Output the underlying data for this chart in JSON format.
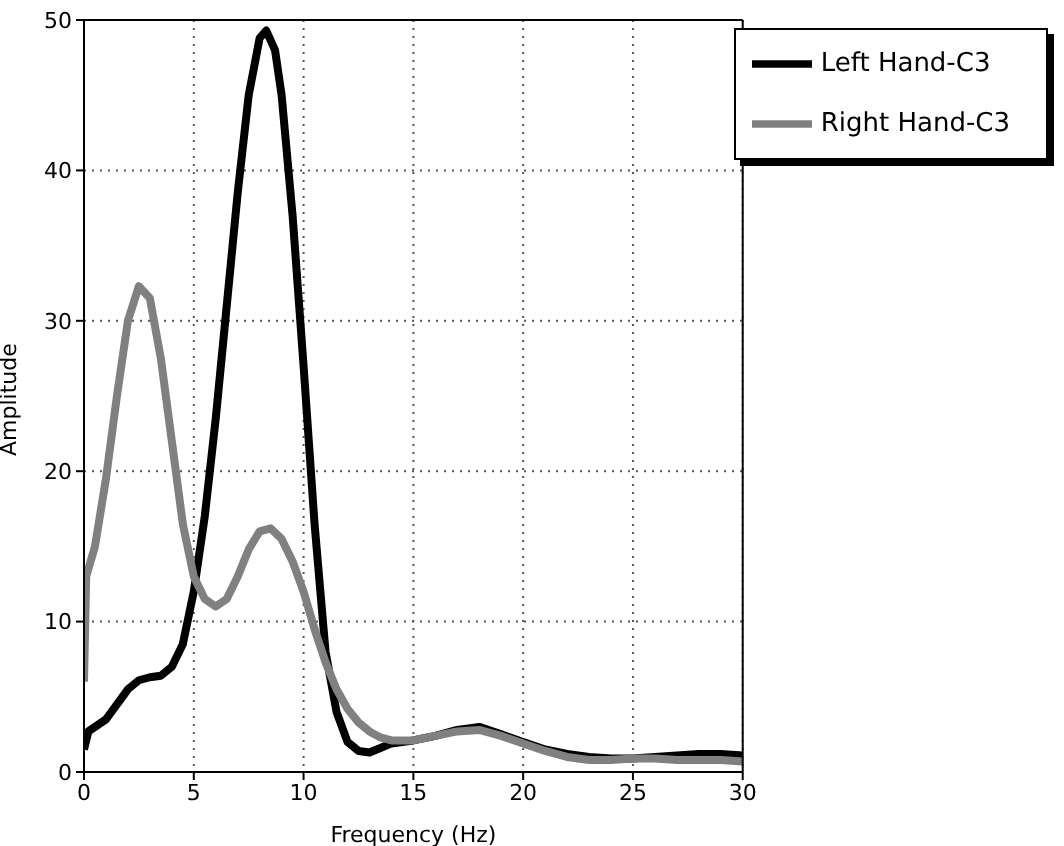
{
  "chart_data": {
    "type": "line",
    "xlabel": "Frequency (Hz)",
    "ylabel": "Amplitude",
    "xlim": [
      0,
      30
    ],
    "xticks": [
      0,
      5,
      10,
      15,
      20,
      25,
      30
    ],
    "ylim": [
      0,
      50
    ],
    "yticks": [
      0,
      10,
      20,
      30,
      40,
      50
    ],
    "grid": true,
    "legend": "top right",
    "line_style": "solid",
    "marker": "none",
    "series": [
      {
        "name": "Left Hand-C3",
        "color": "#000000",
        "x": [
          0,
          0.2,
          1,
          2,
          2.5,
          3,
          3.5,
          4,
          4.5,
          5,
          5.5,
          6,
          6.5,
          7,
          7.5,
          8,
          8.3,
          8.7,
          9,
          9.5,
          10,
          10.5,
          11,
          11.5,
          12,
          12.5,
          13,
          13.5,
          14,
          15,
          16,
          17,
          18,
          19,
          20,
          21,
          22,
          23,
          24,
          25,
          26,
          27,
          28,
          29,
          30
        ],
        "values": [
          1.5,
          2.7,
          3.5,
          5.5,
          6.1,
          6.3,
          6.4,
          7,
          8.5,
          12,
          17,
          23.5,
          31,
          38.5,
          45,
          48.8,
          49.3,
          48,
          45,
          37,
          27,
          16.5,
          8,
          4,
          2,
          1.4,
          1.3,
          1.6,
          1.9,
          2.1,
          2.4,
          2.8,
          3.0,
          2.5,
          2.0,
          1.5,
          1.2,
          1.0,
          0.9,
          0.9,
          1.0,
          1.1,
          1.2,
          1.2,
          1.1
        ]
      },
      {
        "name": "Right Hand-C3",
        "color": "#808080",
        "x": [
          0,
          0.1,
          0.5,
          1,
          1.5,
          2,
          2.5,
          3,
          3.5,
          4,
          4.5,
          5,
          5.5,
          6,
          6.5,
          7,
          7.5,
          8,
          8.5,
          9,
          9.5,
          10,
          10.5,
          11,
          11.5,
          12,
          12.5,
          13,
          13.5,
          14,
          15,
          16,
          17,
          18,
          19,
          20,
          21,
          22,
          23,
          24,
          25,
          26,
          27,
          28,
          29,
          30
        ],
        "values": [
          6,
          13,
          15,
          19.5,
          25,
          30,
          32.3,
          31.5,
          27.5,
          22,
          16.5,
          13,
          11.5,
          11,
          11.5,
          13,
          14.8,
          16,
          16.2,
          15.5,
          14,
          12,
          9.5,
          7.3,
          5.5,
          4.2,
          3.3,
          2.7,
          2.3,
          2.1,
          2.1,
          2.4,
          2.7,
          2.8,
          2.4,
          1.9,
          1.4,
          1.0,
          0.8,
          0.8,
          0.9,
          0.9,
          0.8,
          0.8,
          0.8,
          0.7
        ]
      }
    ]
  }
}
